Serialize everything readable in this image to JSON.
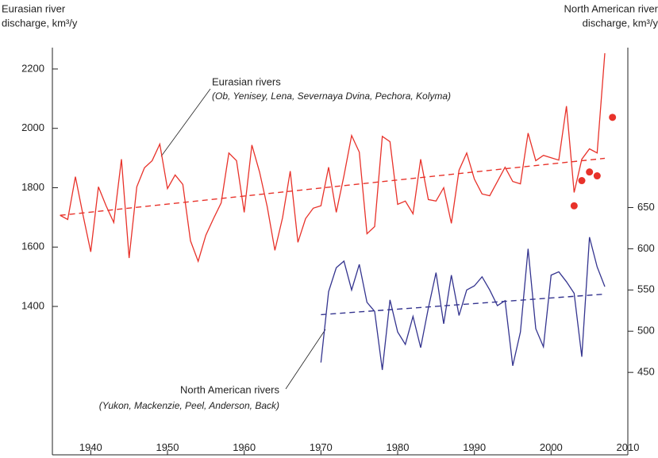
{
  "chart_data": {
    "type": "line",
    "y_label": [
      "Eurasian river",
      "discharge, km³/y"
    ],
    "y2_label": [
      "North American river",
      "discharge, km³/y"
    ],
    "xlim": [
      1935,
      2010
    ],
    "xticks": [
      1940,
      1950,
      1960,
      1970,
      1980,
      1990,
      2000,
      2010
    ],
    "ylim": [
      900,
      2272
    ],
    "yticks": [
      1400,
      1600,
      1800,
      2000,
      2200
    ],
    "y2lim": [
      350,
      844
    ],
    "y2ticks": [
      450,
      500,
      550,
      600,
      650
    ],
    "series": [
      {
        "name": "Eurasian rivers",
        "note": "(Ob, Yenisey, Lena, Severnaya Dvina, Pechora, Kolyma)",
        "color": "#e8322a",
        "kind": "line",
        "x": [
          1936,
          1937,
          1938,
          1939,
          1940,
          1941,
          1942,
          1943,
          1944,
          1945,
          1946,
          1947,
          1948,
          1949,
          1950,
          1951,
          1952,
          1953,
          1954,
          1955,
          1956,
          1957,
          1958,
          1959,
          1960,
          1961,
          1962,
          1963,
          1964,
          1965,
          1966,
          1967,
          1968,
          1969,
          1970,
          1971,
          1972,
          1973,
          1974,
          1975,
          1976,
          1977,
          1978,
          1979,
          1980,
          1981,
          1982,
          1983,
          1984,
          1985,
          1986,
          1987,
          1988,
          1989,
          1990,
          1991,
          1992,
          1993,
          1994,
          1995,
          1996,
          1997,
          1998,
          1999,
          2000,
          2001,
          2002,
          2003,
          2004,
          2005,
          2006,
          2007
        ],
        "values": [
          1707,
          1693,
          1837,
          1707,
          1584,
          1803,
          1739,
          1683,
          1896,
          1563,
          1803,
          1867,
          1891,
          1947,
          1797,
          1843,
          1811,
          1621,
          1552,
          1640,
          1696,
          1749,
          1917,
          1891,
          1717,
          1944,
          1853,
          1736,
          1589,
          1699,
          1856,
          1616,
          1696,
          1731,
          1739,
          1869,
          1717,
          1840,
          1976,
          1920,
          1645,
          1669,
          1973,
          1955,
          1744,
          1755,
          1712,
          1896,
          1760,
          1755,
          1800,
          1680,
          1859,
          1917,
          1829,
          1779,
          1773,
          1821,
          1869,
          1821,
          1813,
          1984,
          1891,
          1909,
          1901,
          1893,
          2075,
          1784,
          1896,
          1931,
          1917,
          2253
        ]
      },
      {
        "color": "#e8322a",
        "kind": "dashed",
        "x": [
          1936,
          2007
        ],
        "values": [
          1707,
          1899
        ]
      },
      {
        "color": "#e8322a",
        "kind": "scatter",
        "x": [
          2003,
          2004,
          2005,
          2006,
          2008
        ],
        "values": [
          1739,
          1824,
          1853,
          1840,
          2037
        ]
      },
      {
        "name": "North American rivers",
        "note": "(Yukon, Mackenzie, Peel, Anderson, Back)",
        "color": "#34348f",
        "kind": "line",
        "axis": "y2",
        "x": [
          1970,
          1971,
          1972,
          1973,
          1974,
          1975,
          1976,
          1977,
          1978,
          1979,
          1980,
          1981,
          1982,
          1983,
          1984,
          1985,
          1986,
          1987,
          1988,
          1989,
          1990,
          1991,
          1992,
          1993,
          1994,
          1995,
          1996,
          1997,
          1998,
          1999,
          2000,
          2001,
          2002,
          2003,
          2004,
          2005,
          2006,
          2007
        ],
        "values": [
          462,
          548,
          577,
          585,
          550,
          581,
          535,
          524,
          453,
          538,
          499,
          484,
          518,
          480,
          528,
          571,
          509,
          568,
          519,
          550,
          555,
          566,
          550,
          531,
          537,
          458,
          499,
          600,
          503,
          481,
          568,
          572,
          560,
          546,
          469,
          614,
          578,
          554
        ]
      },
      {
        "color": "#34348f",
        "kind": "dashed",
        "axis": "y2",
        "x": [
          1970,
          2007
        ],
        "values": [
          520,
          545
        ]
      }
    ]
  }
}
